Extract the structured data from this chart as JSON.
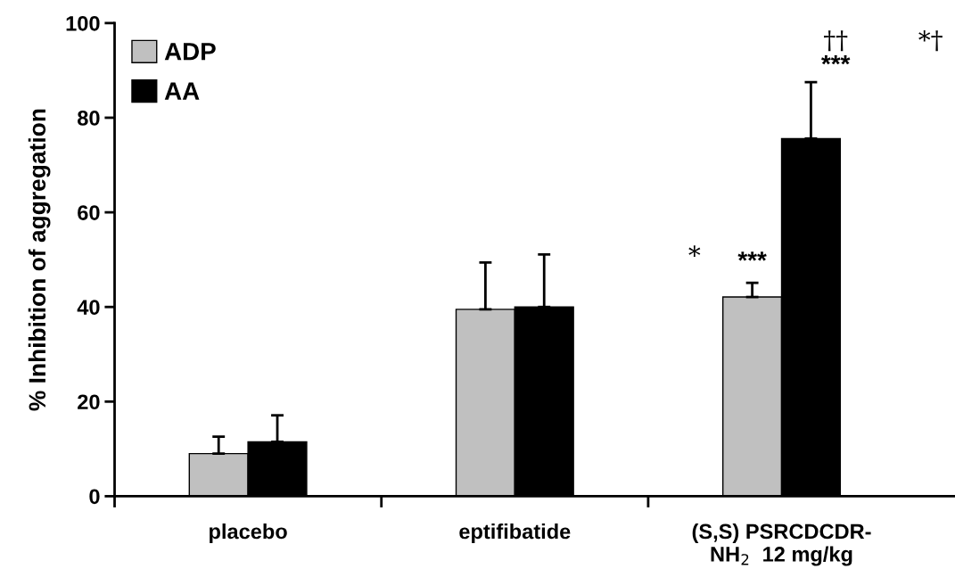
{
  "chart_data": {
    "type": "bar",
    "ylabel": "% Inhibition of aggregation",
    "categories": [
      "placebo",
      "eptifibatide",
      "(S,S) PSRCDCDR-\nNH$_{2}$  12 mg/kg"
    ],
    "series": [
      {
        "name": "ADP",
        "color": "#c0c0c0",
        "values": [
          9.0,
          39.5,
          42.1
        ],
        "errors": [
          [
            9.0,
            12.6
          ],
          [
            39.5,
            49.4
          ],
          [
            42.1,
            45.1
          ]
        ]
      },
      {
        "name": "AA",
        "color": "#000000",
        "values": [
          11.5,
          40.0,
          75.6
        ],
        "errors": [
          [
            11.5,
            17.1
          ],
          [
            40.0,
            51.1
          ],
          [
            75.6,
            87.5
          ]
        ]
      }
    ],
    "ylim": [
      0,
      100
    ],
    "yticks": [
      0,
      20,
      40,
      60,
      80,
      100
    ],
    "grid": false,
    "legend": "top left",
    "annotations": [
      {
        "text": "***",
        "x": "(S,S) PSRCDCDR-\nNH$_{2}$  12 mg/kg",
        "y": 47
      },
      "***",
      "††",
      "*",
      "*†"
    ]
  }
}
